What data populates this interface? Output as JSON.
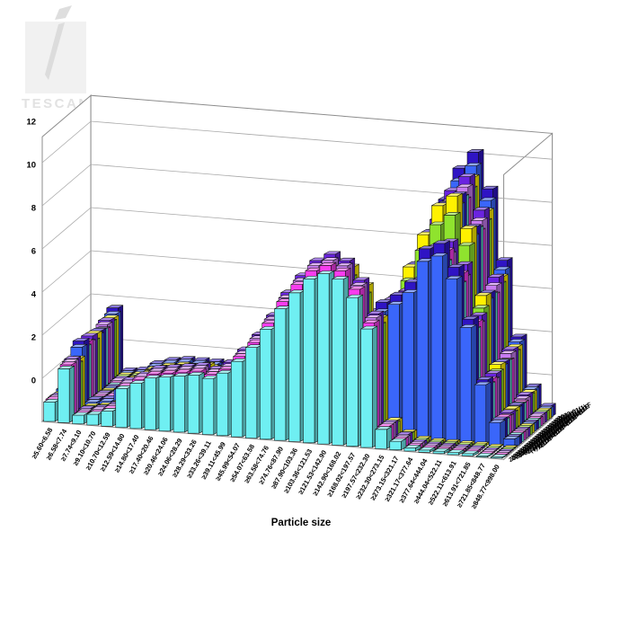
{
  "watermark": {
    "brand": "TESCAN"
  },
  "chart_data": {
    "type": "bar",
    "projection": "3d",
    "title": "",
    "xlabel": "Particle size",
    "ylabel": "",
    "ylim": [
      0,
      12
    ],
    "ytick_step": 2,
    "grid": true,
    "legend_position": "depth-axis-right",
    "palette": {
      "cyan": "#6FEFF2",
      "magenta": "#F83CEE",
      "violet": "#C77CF2",
      "purple": "#6A23E0",
      "green": "#8FE32E",
      "yellow": "#FFF100",
      "blue": "#3A66FA",
      "navy": "#2F14C4"
    },
    "categories": [
      "≥5.60<6.58",
      "≥6.58<7.74",
      "≥7.74<9.10",
      "≥9.10<10.70",
      "≥10.70<12.59",
      "≥12.59<14.80",
      "≥14.80<17.40",
      "≥17.40<20.46",
      "≥20.46<24.06",
      "≥24.06<28.29",
      "≥28.29<33.26",
      "≥33.26<39.11",
      "≥39.11<45.99",
      "≥45.99<54.07",
      "≥54.07<63.58",
      "≥63.58<74.76",
      "≥74.76<87.90",
      "≥87.90<103.36",
      "≥103.36<121.53",
      "≥121.53<142.90",
      "≥142.90<168.02",
      "≥168.02<197.57",
      "≥197.57<232.30",
      "≥232.30<273.15",
      "≥273.15<321.17",
      "≥321.17<377.64",
      "≥377.64<444.04",
      "≥444.04<522.11",
      "≥522.11<613.91",
      "≥613.91<721.85",
      "≥721.85<848.77",
      "≥848.77<998.00"
    ],
    "series": [
      {
        "name": "2023-01(4) A",
        "color": "cyan",
        "values": [
          0.9,
          2.5,
          0.4,
          0.5,
          0.7,
          1.8,
          2.1,
          2.4,
          2.5,
          2.6,
          2.7,
          2.6,
          2.9,
          3.5,
          4.2,
          5.1,
          6.1,
          6.9,
          7.6,
          7.9,
          7.7,
          6.9,
          5.5,
          0.9,
          0.4,
          0.15,
          0.1,
          0.1,
          0.1,
          0.1,
          0.05,
          0.05
        ]
      },
      {
        "name": "2023-01(4) B",
        "color": "magenta",
        "values": [
          0.95,
          2.6,
          0.4,
          0.5,
          0.75,
          1.85,
          2.2,
          2.5,
          2.6,
          2.7,
          2.8,
          2.7,
          3.0,
          3.65,
          4.35,
          5.3,
          6.35,
          7.2,
          7.9,
          8.2,
          8.0,
          7.2,
          5.7,
          0.95,
          0.4,
          0.15,
          0.1,
          0.1,
          0.1,
          0.1,
          0.05,
          0.05
        ]
      },
      {
        "name": "2023-01(4) C",
        "color": "violet",
        "values": [
          0.95,
          2.65,
          0.4,
          0.55,
          0.75,
          1.9,
          2.25,
          2.55,
          2.65,
          2.75,
          2.85,
          2.75,
          3.05,
          3.7,
          4.45,
          5.4,
          6.45,
          7.3,
          8.05,
          8.35,
          8.15,
          7.3,
          5.85,
          0.95,
          0.4,
          0.15,
          0.1,
          0.1,
          0.1,
          0.1,
          0.05,
          0.05
        ]
      },
      {
        "name": "2023-01(4) D",
        "color": "purple",
        "values": [
          0.95,
          2.7,
          0.45,
          0.55,
          0.75,
          1.95,
          2.25,
          2.6,
          2.7,
          2.8,
          2.9,
          2.8,
          3.15,
          3.8,
          4.55,
          5.5,
          6.6,
          7.45,
          8.2,
          8.55,
          8.3,
          7.45,
          5.95,
          0.95,
          0.45,
          0.15,
          0.1,
          0.1,
          0.1,
          0.1,
          0.05,
          0.05
        ]
      },
      {
        "name": "2023-01(4) E",
        "color": "green",
        "values": [
          0.85,
          2.4,
          0.4,
          0.5,
          0.7,
          1.75,
          2.05,
          2.35,
          2.4,
          2.5,
          2.6,
          2.5,
          2.8,
          3.4,
          4.05,
          4.95,
          5.9,
          6.7,
          7.35,
          7.65,
          7.45,
          6.7,
          5.35,
          0.85,
          0.4,
          0.15,
          0.1,
          0.1,
          0.1,
          0.1,
          0.05,
          0.05
        ]
      },
      {
        "name": "2023-01(4) F",
        "color": "yellow",
        "values": [
          0.9,
          2.55,
          0.4,
          0.5,
          0.7,
          1.85,
          2.15,
          2.45,
          2.55,
          2.65,
          2.75,
          2.65,
          2.95,
          3.55,
          4.3,
          5.2,
          6.2,
          7.05,
          7.75,
          8.05,
          7.85,
          7.05,
          5.6,
          0.9,
          0.4,
          0.15,
          0.1,
          0.1,
          0.1,
          0.1,
          0.05,
          0.05
        ]
      },
      {
        "name": "2023-01(3) A",
        "color": "blue",
        "values": [
          1.0,
          3.0,
          0.5,
          0.6,
          1.2,
          1.5,
          1.6,
          1.6,
          1.6,
          1.6,
          1.6,
          1.6,
          1.7,
          1.8,
          1.9,
          2.1,
          2.4,
          2.8,
          3.3,
          3.9,
          4.6,
          5.2,
          5.8,
          6.2,
          6.8,
          8.3,
          8.6,
          7.6,
          5.4,
          2.8,
          1.1,
          0.4
        ]
      },
      {
        "name": "2023-01(3) B",
        "color": "navy",
        "values": [
          1.05,
          3.2,
          0.55,
          0.65,
          1.25,
          1.6,
          1.7,
          1.7,
          1.7,
          1.7,
          1.7,
          1.7,
          1.8,
          1.9,
          2.0,
          2.25,
          2.55,
          2.95,
          3.5,
          4.15,
          4.9,
          5.5,
          6.15,
          6.55,
          7.2,
          8.8,
          9.1,
          8.05,
          5.7,
          2.95,
          1.15,
          0.4
        ]
      },
      {
        "name": "2023-01(3) C",
        "color": "cyan",
        "values": [
          0.95,
          2.85,
          0.5,
          0.55,
          1.15,
          1.4,
          1.5,
          1.5,
          1.5,
          1.5,
          1.5,
          1.5,
          1.6,
          1.7,
          1.8,
          2.0,
          2.3,
          2.65,
          3.15,
          3.7,
          4.35,
          4.95,
          5.5,
          5.9,
          6.45,
          7.9,
          8.15,
          7.2,
          5.15,
          2.65,
          1.05,
          0.4
        ]
      },
      {
        "name": "2023-01(3) D",
        "color": "magenta",
        "values": [
          1.0,
          3.0,
          0.5,
          0.6,
          1.2,
          1.5,
          1.6,
          1.6,
          1.6,
          1.6,
          1.6,
          1.6,
          1.7,
          1.8,
          1.9,
          2.1,
          2.4,
          2.8,
          3.3,
          3.9,
          4.6,
          5.2,
          5.8,
          6.2,
          6.8,
          8.3,
          8.6,
          7.6,
          5.4,
          2.8,
          1.1,
          0.4
        ]
      },
      {
        "name": "2023-01(3) E",
        "color": "violet",
        "values": [
          0.95,
          2.9,
          0.5,
          0.6,
          1.15,
          1.45,
          1.55,
          1.55,
          1.55,
          1.55,
          1.55,
          1.55,
          1.65,
          1.75,
          1.85,
          2.05,
          2.35,
          2.7,
          3.2,
          3.8,
          4.45,
          5.05,
          5.6,
          6.0,
          6.6,
          8.05,
          8.35,
          7.35,
          5.25,
          2.7,
          1.05,
          0.4
        ]
      },
      {
        "name": "2023-01(3) F",
        "color": "purple",
        "values": [
          1.05,
          3.1,
          0.5,
          0.6,
          1.25,
          1.55,
          1.65,
          1.65,
          1.65,
          1.65,
          1.65,
          1.65,
          1.75,
          1.85,
          1.95,
          2.15,
          2.45,
          2.9,
          3.4,
          4.0,
          4.75,
          5.35,
          5.95,
          6.4,
          7.0,
          8.55,
          8.85,
          7.85,
          5.55,
          2.9,
          1.15,
          0.4
        ]
      },
      {
        "name": "2023-01(2) A",
        "color": "green",
        "values": [
          0.85,
          2.8,
          0.45,
          0.55,
          0.85,
          1.05,
          1.15,
          1.15,
          1.15,
          1.15,
          1.15,
          1.15,
          1.25,
          1.25,
          1.35,
          1.45,
          1.65,
          1.85,
          2.15,
          2.6,
          3.3,
          4.25,
          5.45,
          6.8,
          8.25,
          9.5,
          10.0,
          8.65,
          5.8,
          2.9,
          1.05,
          0.4
        ]
      },
      {
        "name": "2023-01(2) B",
        "color": "yellow",
        "values": [
          0.95,
          3.05,
          0.45,
          0.6,
          0.95,
          1.15,
          1.25,
          1.25,
          1.25,
          1.25,
          1.25,
          1.25,
          1.35,
          1.35,
          1.45,
          1.6,
          1.8,
          2.0,
          2.3,
          2.85,
          3.55,
          4.6,
          5.9,
          7.35,
          8.9,
          10.3,
          10.8,
          9.35,
          6.3,
          3.15,
          1.15,
          0.4
        ]
      },
      {
        "name": "2023-01(2) C",
        "color": "blue",
        "values": [
          0.9,
          2.9,
          0.45,
          0.55,
          0.9,
          1.1,
          1.2,
          1.2,
          1.2,
          1.2,
          1.2,
          1.2,
          1.3,
          1.3,
          1.4,
          1.5,
          1.7,
          1.9,
          2.2,
          2.7,
          3.4,
          4.4,
          5.6,
          7.0,
          8.5,
          9.8,
          10.3,
          8.9,
          6.0,
          3.0,
          1.1,
          0.4
        ]
      },
      {
        "name": "2023-01(2) D",
        "color": "navy",
        "values": [
          0.95,
          3.0,
          0.45,
          0.55,
          0.95,
          1.15,
          1.25,
          1.25,
          1.25,
          1.25,
          1.25,
          1.25,
          1.35,
          1.35,
          1.45,
          1.55,
          1.75,
          2.0,
          2.3,
          2.8,
          3.55,
          4.6,
          5.8,
          7.3,
          8.85,
          10.2,
          10.7,
          9.25,
          6.25,
          3.1,
          1.15,
          0.4
        ]
      },
      {
        "name": "2023-01(2) E",
        "color": "cyan",
        "values": [
          0.9,
          2.95,
          0.45,
          0.55,
          0.9,
          1.1,
          1.2,
          1.2,
          1.2,
          1.2,
          1.2,
          1.2,
          1.35,
          1.35,
          1.45,
          1.55,
          1.75,
          1.95,
          2.25,
          2.75,
          3.45,
          4.5,
          5.7,
          7.15,
          8.65,
          10.0,
          10.5,
          9.1,
          6.1,
          3.05,
          1.1,
          0.4
        ]
      },
      {
        "name": "2023-01(2) F",
        "color": "magenta",
        "values": [
          0.9,
          2.9,
          0.45,
          0.55,
          0.9,
          1.1,
          1.2,
          1.2,
          1.2,
          1.2,
          1.2,
          1.2,
          1.3,
          1.3,
          1.4,
          1.5,
          1.7,
          1.9,
          2.2,
          2.7,
          3.4,
          4.4,
          5.6,
          7.0,
          8.5,
          9.8,
          10.3,
          8.9,
          6.0,
          3.0,
          1.1,
          0.4
        ]
      },
      {
        "name": "2023-01(1) A",
        "color": "violet",
        "values": [
          1.0,
          3.05,
          0.5,
          0.6,
          0.9,
          1.1,
          1.2,
          1.2,
          1.2,
          1.2,
          1.2,
          1.2,
          1.25,
          1.25,
          1.35,
          1.45,
          1.65,
          1.85,
          2.15,
          2.65,
          3.45,
          4.4,
          5.7,
          7.15,
          8.7,
          10.1,
          10.8,
          9.3,
          6.35,
          3.25,
          1.2,
          0.45
        ]
      },
      {
        "name": "2023-01(1) B",
        "color": "purple",
        "values": [
          1.0,
          3.15,
          0.5,
          0.6,
          0.9,
          1.1,
          1.2,
          1.2,
          1.2,
          1.2,
          1.2,
          1.2,
          1.35,
          1.35,
          1.45,
          1.55,
          1.75,
          1.95,
          2.25,
          2.75,
          3.55,
          4.6,
          5.9,
          7.45,
          9.1,
          10.5,
          11.2,
          9.7,
          6.65,
          3.35,
          1.3,
          0.45
        ]
      },
      {
        "name": "2023-01(1) C",
        "color": "green",
        "values": [
          0.95,
          3.0,
          0.5,
          0.6,
          0.85,
          1.05,
          1.15,
          1.15,
          1.15,
          1.15,
          1.15,
          1.15,
          1.25,
          1.25,
          1.35,
          1.45,
          1.65,
          1.8,
          2.1,
          2.6,
          3.35,
          4.3,
          5.55,
          7.0,
          8.55,
          9.9,
          10.55,
          9.1,
          6.25,
          3.15,
          1.2,
          0.45
        ]
      },
      {
        "name": "2023-01(1) D",
        "color": "yellow",
        "values": [
          1.0,
          3.1,
          0.5,
          0.6,
          0.9,
          1.1,
          1.2,
          1.2,
          1.2,
          1.2,
          1.2,
          1.2,
          1.3,
          1.3,
          1.4,
          1.5,
          1.7,
          1.9,
          2.2,
          2.7,
          3.5,
          4.5,
          5.8,
          7.3,
          8.9,
          10.3,
          11.0,
          9.5,
          6.5,
          3.3,
          1.25,
          0.45
        ]
      },
      {
        "name": "2023-01(1) E",
        "color": "blue",
        "values": [
          1.05,
          3.2,
          0.5,
          0.6,
          0.95,
          1.15,
          1.25,
          1.25,
          1.25,
          1.25,
          1.25,
          1.25,
          1.35,
          1.35,
          1.45,
          1.55,
          1.75,
          2.0,
          2.3,
          2.8,
          3.65,
          4.7,
          6.05,
          7.6,
          9.25,
          10.7,
          11.45,
          9.9,
          6.75,
          3.45,
          1.3,
          0.45
        ]
      },
      {
        "name": "2023-01(1) F",
        "color": "navy",
        "values": [
          1.1,
          3.4,
          0.55,
          0.65,
          1.0,
          1.2,
          1.3,
          1.3,
          1.3,
          1.3,
          1.3,
          1.3,
          1.4,
          1.4,
          1.55,
          1.65,
          1.85,
          2.05,
          2.4,
          2.95,
          3.8,
          4.9,
          6.3,
          7.95,
          9.7,
          11.2,
          12.0,
          10.35,
          7.1,
          3.6,
          1.35,
          0.5
        ]
      }
    ]
  }
}
